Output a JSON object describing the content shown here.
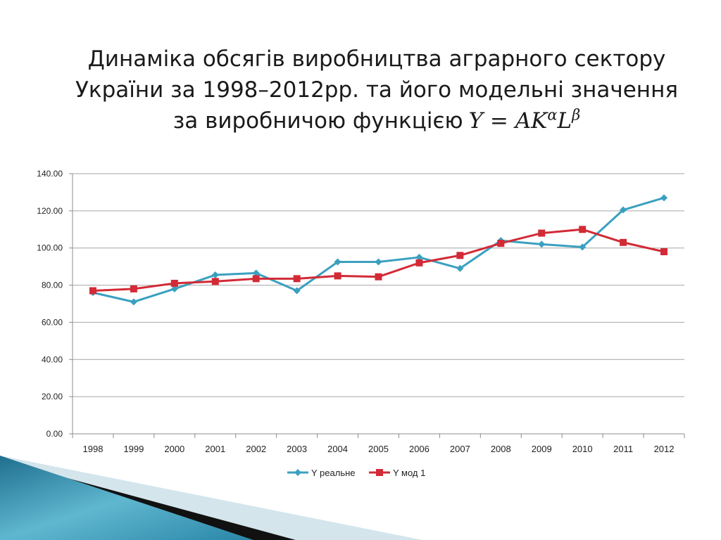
{
  "slide": {
    "title_line1": "Динаміка обсягів виробництва аграрного сектору",
    "title_line2": "України за 1998–2012рр. та його модельні значення",
    "title_line3": "за виробничою функцією",
    "formula": {
      "lhs": "Y",
      "eq": "=",
      "a": "A",
      "k": "K",
      "alpha": "α",
      "l": "L",
      "beta": "β"
    }
  },
  "colors": {
    "series_real": "#3aa0c0",
    "series_model": "#d22a36",
    "grid": "#a6a6a6",
    "axis": "#8c8c8c"
  },
  "chart_data": {
    "type": "line",
    "categories": [
      "1998",
      "1999",
      "2000",
      "2001",
      "2002",
      "2003",
      "2004",
      "2005",
      "2006",
      "2007",
      "2008",
      "2009",
      "2010",
      "2011",
      "2012"
    ],
    "ylim": [
      0,
      140
    ],
    "yticks": [
      "0.00",
      "20.00",
      "40.00",
      "60.00",
      "80.00",
      "100.00",
      "120.00",
      "140.00"
    ],
    "grid": true,
    "legend_position": "bottom",
    "series": [
      {
        "name": "Y реальне",
        "marker": "diamond",
        "values": [
          76,
          71,
          78,
          85.5,
          86.5,
          77,
          92.5,
          92.5,
          95,
          89,
          104,
          102,
          100.5,
          120.5,
          127
        ]
      },
      {
        "name": "Y мод 1",
        "marker": "square",
        "values": [
          77,
          78,
          81,
          82,
          83.5,
          83.5,
          85,
          84.5,
          92,
          96,
          102.5,
          108,
          110,
          103,
          98
        ]
      }
    ]
  }
}
